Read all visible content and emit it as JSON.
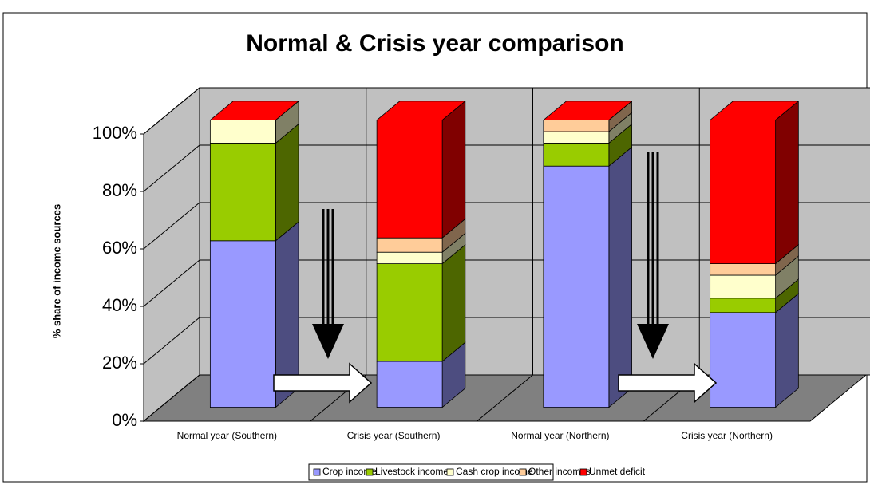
{
  "chart_data": {
    "type": "bar3d_stacked",
    "title": "Normal & Crisis year comparison",
    "y_label": "% share of income sources",
    "categories": [
      "Normal year (Southern)",
      "Crisis year (Southern)",
      "Normal year (Northern)",
      "Crisis year (Northern)"
    ],
    "series": [
      {
        "name": "Crop income",
        "color": "#9999ff",
        "values": [
          58,
          16,
          84,
          33
        ]
      },
      {
        "name": "Livestock income",
        "color": "#99cc00",
        "values": [
          34,
          34,
          8,
          5
        ]
      },
      {
        "name": "Cash crop income",
        "color": "#ffffcc",
        "values": [
          8,
          4,
          4,
          8
        ]
      },
      {
        "name": "Other incomes",
        "color": "#ffcc99",
        "values": [
          0,
          5,
          4,
          4
        ]
      },
      {
        "name": "Unmet deficit",
        "color": "#ff0000",
        "values": [
          0,
          41,
          0,
          50
        ]
      }
    ],
    "ylim": [
      0,
      100
    ],
    "yticks": [
      {
        "value": 0,
        "label": "0%"
      },
      {
        "value": 20,
        "label": "20%"
      },
      {
        "value": 40,
        "label": "40%"
      },
      {
        "value": 60,
        "label": "60%"
      },
      {
        "value": 80,
        "label": "80%"
      },
      {
        "value": 100,
        "label": "100%"
      }
    ],
    "grid": true,
    "legend": "bottom"
  }
}
